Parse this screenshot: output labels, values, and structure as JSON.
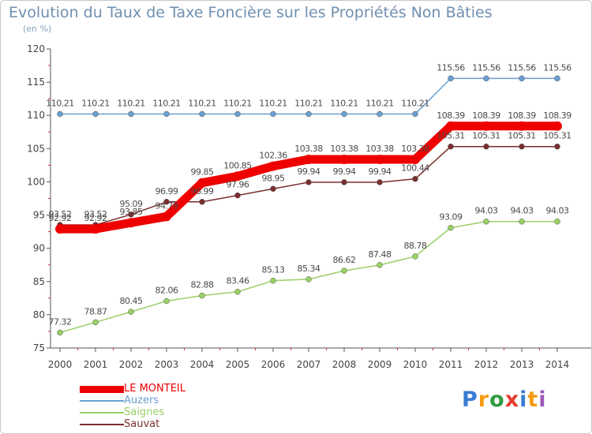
{
  "header": {
    "title": "Evolution du Taux de Taxe Foncière sur les Propriétés Non Bâties",
    "unit": "(en %)"
  },
  "logo": {
    "letters": [
      "P",
      "r",
      "o",
      "x",
      "i",
      "t",
      "i"
    ],
    "colors": [
      "#3a7bd5",
      "#f39c12",
      "#2e9c3f",
      "#e23c2e",
      "#3a7bd5",
      "#f39c12",
      "#9b59b6"
    ]
  },
  "chart_data": {
    "type": "line",
    "x": [
      "2000",
      "2001",
      "2002",
      "2003",
      "2004",
      "2005",
      "2006",
      "2007",
      "2008",
      "2009",
      "2010",
      "2011",
      "2012",
      "2013",
      "2014"
    ],
    "ylim": [
      75,
      120
    ],
    "yticks": [
      "75",
      "80",
      "85",
      "90",
      "95",
      "100",
      "105",
      "110",
      "115",
      "120"
    ],
    "grid": false,
    "legend": "bottom-left",
    "series": [
      {
        "name": "LE MONTEIL",
        "color": "#ee0000",
        "values": [
          92.92,
          92.92,
          93.85,
          94.78,
          99.85,
          100.85,
          102.36,
          103.38,
          103.38,
          103.38,
          103.38,
          108.39,
          108.39,
          108.39,
          108.39
        ],
        "labels": [
          "92.92",
          "92.92",
          "93.85",
          "94.78",
          "99.85",
          "100.85",
          "102.36",
          "103.38",
          "103.38",
          "103.38",
          "103.38",
          "108.39",
          "108.39",
          "108.39",
          "108.39"
        ]
      },
      {
        "name": "Auzers",
        "color": "#6a9fd0",
        "values": [
          110.21,
          110.21,
          110.21,
          110.21,
          110.21,
          110.21,
          110.21,
          110.21,
          110.21,
          110.21,
          110.21,
          115.56,
          115.56,
          115.56,
          115.56
        ],
        "labels": [
          "110.21",
          "110.21",
          "110.21",
          "110.21",
          "110.21",
          "110.21",
          "110.21",
          "110.21",
          "110.21",
          "110.21",
          "110.21",
          "115.56",
          "115.56",
          "115.56",
          "115.56"
        ]
      },
      {
        "name": "Saignes",
        "color": "#99d066",
        "values": [
          77.32,
          78.87,
          80.45,
          82.06,
          82.88,
          83.46,
          85.13,
          85.34,
          86.62,
          87.48,
          88.78,
          93.09,
          94.03,
          94.03,
          94.03
        ],
        "labels": [
          "77.32",
          "78.87",
          "80.45",
          "82.06",
          "82.88",
          "83.46",
          "85.13",
          "85.34",
          "86.62",
          "87.48",
          "88.78",
          "93.09",
          "94.03",
          "94.03",
          "94.03"
        ]
      },
      {
        "name": "Sauvat",
        "color": "#7a2e2e",
        "values": [
          93.52,
          93.52,
          95.09,
          96.99,
          96.99,
          97.96,
          98.95,
          99.94,
          99.94,
          99.94,
          100.44,
          105.31,
          105.31,
          105.31,
          105.31
        ],
        "labels": [
          "93.52",
          "93.52",
          "95.09",
          "96.99",
          "96.99",
          "97.96",
          "98.95",
          "99.94",
          "99.94",
          "99.94",
          "100.44",
          "105.31",
          "105.31",
          "105.31",
          "105.31"
        ]
      }
    ]
  }
}
